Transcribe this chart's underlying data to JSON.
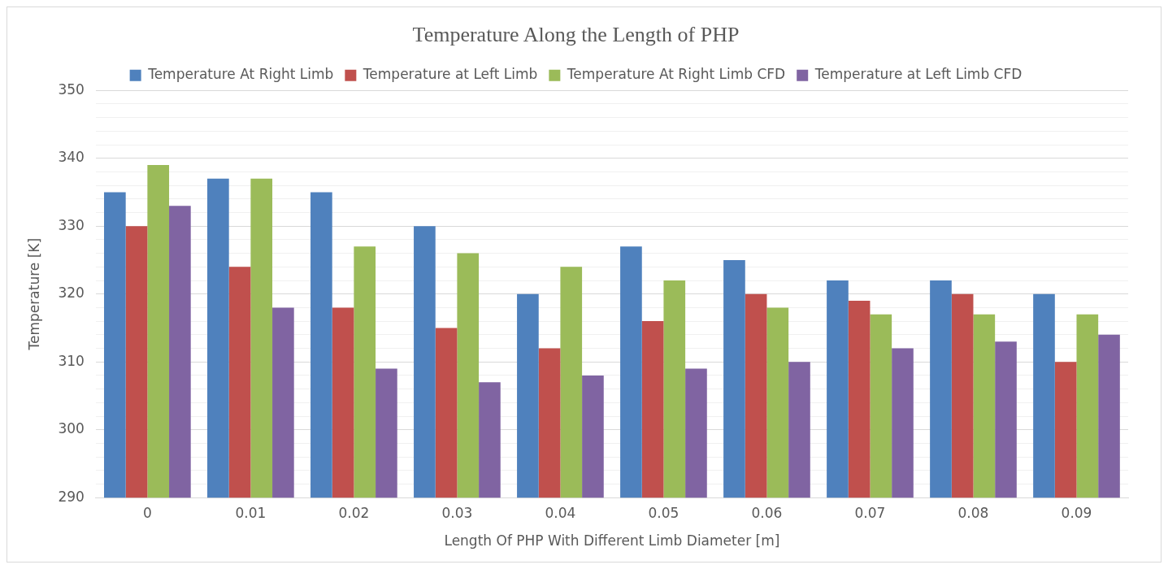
{
  "chart_data": {
    "type": "bar",
    "title": "Temperature Along the Length of PHP",
    "xlabel": "Length Of PHP With Different Limb Diameter [m]",
    "ylabel": "Temperature [K]",
    "categories": [
      "0",
      "0.01",
      "0.02",
      "0.03",
      "0.04",
      "0.05",
      "0.06",
      "0.07",
      "0.08",
      "0.09"
    ],
    "series": [
      {
        "name": "Temperature At Right Limb",
        "color": "#4f81bd",
        "values": [
          335,
          337,
          335,
          330,
          320,
          327,
          325,
          322,
          322,
          320
        ]
      },
      {
        "name": "Temperature at Left Limb",
        "color": "#c0504d",
        "values": [
          330,
          324,
          318,
          315,
          312,
          316,
          320,
          319,
          320,
          310
        ]
      },
      {
        "name": "Temperature At Right Limb CFD",
        "color": "#9bbb59",
        "values": [
          339,
          337,
          327,
          326,
          324,
          322,
          318,
          317,
          317,
          317
        ]
      },
      {
        "name": "Temperature at Left Limb CFD",
        "color": "#8064a2",
        "values": [
          333,
          318,
          309,
          307,
          308,
          309,
          310,
          312,
          313,
          314
        ]
      }
    ],
    "ylim": [
      290,
      350
    ],
    "yticks": [
      290,
      {
        "value": 292,
        "label": null
      },
      {
        "value": 294,
        "label": null
      },
      {
        "value": 296,
        "label": null
      },
      {
        "value": 298,
        "label": null
      },
      300,
      {
        "value": 302,
        "label": null
      },
      {
        "value": 304,
        "label": null
      },
      {
        "value": 306,
        "label": null
      },
      {
        "value": 308,
        "label": null
      },
      310,
      {
        "value": 312,
        "label": null
      },
      {
        "value": 314,
        "label": null
      },
      {
        "value": 316,
        "label": null
      },
      {
        "value": 318,
        "label": null
      },
      320,
      {
        "value": 322,
        "label": null
      },
      {
        "value": 324,
        "label": null
      },
      {
        "value": 326,
        "label": null
      },
      {
        "value": 328,
        "label": null
      },
      330,
      {
        "value": 332,
        "label": null
      },
      {
        "value": 334,
        "label": null
      },
      {
        "value": 336,
        "label": null
      },
      {
        "value": 338,
        "label": null
      },
      340,
      {
        "value": 342,
        "label": null
      },
      {
        "value": 344,
        "label": null
      },
      {
        "value": 346,
        "label": null
      },
      {
        "value": 348,
        "label": null
      },
      350
    ],
    "grid": "y",
    "legend": "top"
  }
}
